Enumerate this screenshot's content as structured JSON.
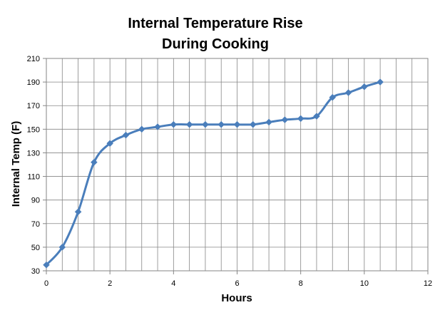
{
  "chart_data": {
    "type": "line",
    "title_lines": [
      "Internal Temperature Rise",
      "During Cooking"
    ],
    "xlabel": "Hours",
    "ylabel": "Internal Temp (F)",
    "xlim": [
      0,
      12
    ],
    "ylim": [
      30,
      210
    ],
    "x_ticks": [
      "0",
      "2",
      "4",
      "6",
      "8",
      "10",
      "12"
    ],
    "y_ticks": [
      "30",
      "50",
      "70",
      "90",
      "110",
      "130",
      "150",
      "170",
      "190",
      "210"
    ],
    "x_tick_values": [
      0,
      2,
      4,
      6,
      8,
      10,
      12
    ],
    "y_tick_values": [
      30,
      50,
      70,
      90,
      110,
      130,
      150,
      170,
      190,
      210
    ],
    "grid": true,
    "x_grid_step": 0.5,
    "y_grid_step": 20,
    "legend": "none",
    "series": [
      {
        "name": "Internal Temp",
        "color": "#4a7ebb",
        "marker": "diamond",
        "smooth": true,
        "x": [
          0,
          0.5,
          1,
          1.5,
          2,
          2.5,
          3,
          3.5,
          4,
          4.5,
          5,
          5.5,
          6,
          6.5,
          7,
          7.5,
          8,
          8.5,
          9,
          9.5,
          10,
          10.5
        ],
        "values": [
          35,
          50,
          80,
          122,
          138,
          145,
          150,
          152,
          154,
          154,
          154,
          154,
          154,
          154,
          156,
          158,
          159,
          161,
          177,
          181,
          186,
          190
        ]
      }
    ]
  }
}
